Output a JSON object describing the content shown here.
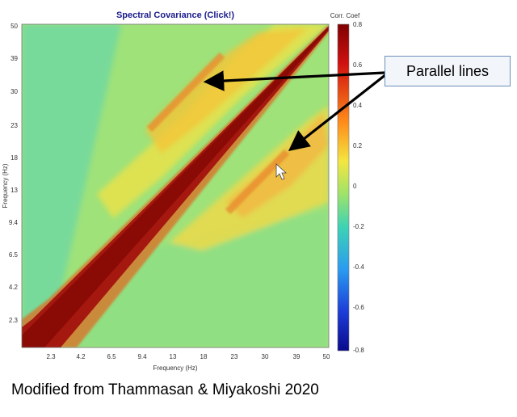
{
  "chart_data": {
    "type": "heatmap",
    "title": "Spectral Covariance (Click!)",
    "xlabel": "Frequency (Hz)",
    "ylabel": "Frequency (Hz)",
    "x_ticks": [
      "2.3",
      "4.2",
      "6.5",
      "9.4",
      "13",
      "18",
      "23",
      "30",
      "39",
      "50"
    ],
    "y_ticks": [
      "2.3",
      "4.2",
      "6.5",
      "9.4",
      "13",
      "18",
      "23",
      "30",
      "39",
      "50"
    ],
    "xlim": [
      1,
      50
    ],
    "ylim": [
      1,
      50
    ],
    "colorbar": {
      "label": "Corr. Coef",
      "range": [
        -0.8,
        0.8
      ],
      "ticks": [
        "0.8",
        "0.6",
        "0.4",
        "0.2",
        "0",
        "-0.2",
        "-0.4",
        "-0.6",
        "-0.8"
      ]
    }
  },
  "annotation": {
    "label": "Parallel lines"
  },
  "caption": "Modified from Thammasan & Miyakoshi 2020"
}
